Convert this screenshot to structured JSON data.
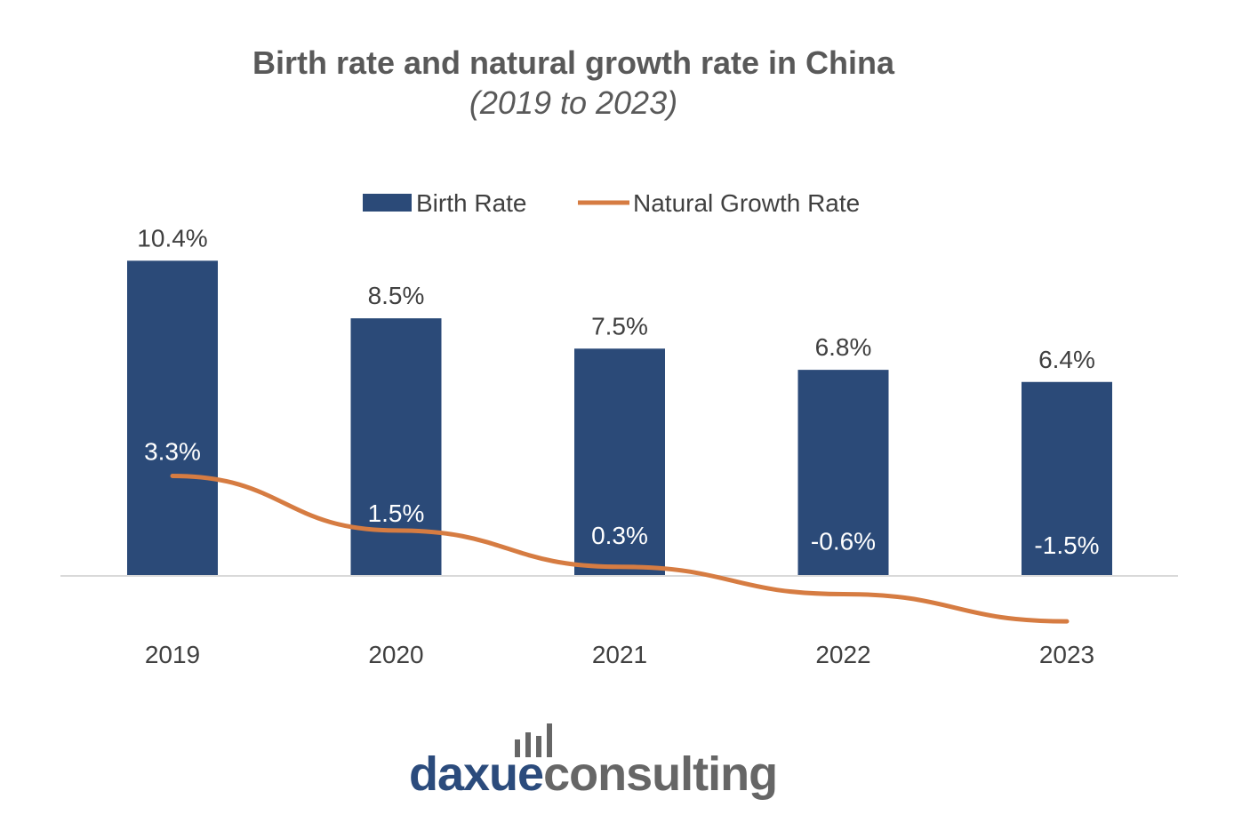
{
  "chart_data": {
    "type": "bar",
    "title": "Birth rate and natural growth rate in China",
    "subtitle": "(2019 to 2023)",
    "categories": [
      "2019",
      "2020",
      "2021",
      "2022",
      "2023"
    ],
    "series": [
      {
        "name": "Birth Rate",
        "kind": "bar",
        "values": [
          10.4,
          8.5,
          7.5,
          6.8,
          6.4
        ],
        "labels": [
          "10.4%",
          "8.5%",
          "7.5%",
          "6.8%",
          "6.4%"
        ],
        "color": "#2b4a78"
      },
      {
        "name": "Natural Growth Rate",
        "kind": "line",
        "values": [
          3.3,
          1.5,
          0.3,
          -0.6,
          -1.5
        ],
        "labels": [
          "3.3%",
          "1.5%",
          "0.3%",
          "-0.6%",
          "-1.5%"
        ],
        "color": "#d67c42"
      }
    ],
    "legend": "top",
    "grid": false
  },
  "logo": {
    "part1": "daxue",
    "part2": "consulting"
  },
  "colors": {
    "bar": "#2b4a78",
    "line": "#d67c42",
    "axis": "#d9d9d9",
    "text": "#404040",
    "title": "#595959",
    "logo_blue": "#2b4b7c",
    "logo_grey": "#666666"
  }
}
